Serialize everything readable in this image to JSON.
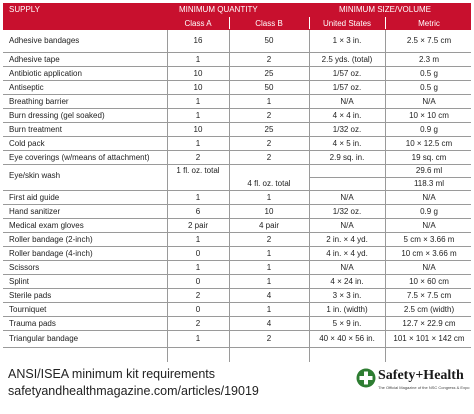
{
  "header": {
    "supply": "SUPPLY",
    "min_quantity": "MINIMUM QUANTITY",
    "min_size": "MINIMUM SIZE/VOLUME",
    "class_a": "Class A",
    "class_b": "Class B",
    "us": "United States",
    "metric": "Metric"
  },
  "rows": [
    {
      "supply": "Adhesive bandages",
      "a": "16",
      "b": "50",
      "us": "1 × 3 in.",
      "metric": "2.5 × 7.5 cm"
    },
    {
      "supply": "Adhesive tape",
      "a": "1",
      "b": "2",
      "us": "2.5 yds. (total)",
      "metric": "2.3 m"
    },
    {
      "supply": "Antibiotic application",
      "a": "10",
      "b": "25",
      "us": "1/57 oz.",
      "metric": "0.5 g"
    },
    {
      "supply": "Antiseptic",
      "a": "10",
      "b": "50",
      "us": "1/57 oz.",
      "metric": "0.5 g"
    },
    {
      "supply": "Breathing barrier",
      "a": "1",
      "b": "1",
      "us": "N/A",
      "metric": "N/A"
    },
    {
      "supply": "Burn dressing (gel soaked)",
      "a": "1",
      "b": "2",
      "us": "4 × 4 in.",
      "metric": "10 × 10 cm"
    },
    {
      "supply": "Burn treatment",
      "a": "10",
      "b": "25",
      "us": "1/32 oz.",
      "metric": "0.9 g"
    },
    {
      "supply": "Cold pack",
      "a": "1",
      "b": "2",
      "us": "4 × 5 in.",
      "metric": "10 × 12.5 cm"
    },
    {
      "supply": "Eye coverings (w/means of attachment)",
      "a": "2",
      "b": "2",
      "us": "2.9 sq. in.",
      "metric": "19 sq. cm"
    },
    {
      "supply": "Eye/skin wash",
      "a": "1 fl. oz. total",
      "b": "",
      "us": "",
      "metric": "29.6 ml",
      "b2": "4 fl. oz. total",
      "metric2": "118.3 ml"
    },
    {
      "supply": "First aid guide",
      "a": "1",
      "b": "1",
      "us": "N/A",
      "metric": "N/A"
    },
    {
      "supply": "Hand sanitizer",
      "a": "6",
      "b": "10",
      "us": "1/32 oz.",
      "metric": "0.9 g"
    },
    {
      "supply": "Medical exam gloves",
      "a": "2 pair",
      "b": "4 pair",
      "us": "N/A",
      "metric": "N/A"
    },
    {
      "supply": "Roller bandage (2-inch)",
      "a": "1",
      "b": "2",
      "us": "2 in. × 4 yd.",
      "metric": "5 cm × 3.66 m"
    },
    {
      "supply": "Roller bandage (4-inch)",
      "a": "0",
      "b": "1",
      "us": "4 in. × 4 yd.",
      "metric": "10 cm × 3.66 m"
    },
    {
      "supply": "Scissors",
      "a": "1",
      "b": "1",
      "us": "N/A",
      "metric": "N/A"
    },
    {
      "supply": "Splint",
      "a": "0",
      "b": "1",
      "us": "4 × 24 in.",
      "metric": "10 × 60 cm"
    },
    {
      "supply": "Sterile pads",
      "a": "2",
      "b": "4",
      "us": "3 × 3 in.",
      "metric": "7.5 × 7.5 cm"
    },
    {
      "supply": "Tourniquet",
      "a": "0",
      "b": "1",
      "us": "1 in. (width)",
      "metric": "2.5 cm (width)"
    },
    {
      "supply": "Trauma pads",
      "a": "2",
      "b": "4",
      "us": "5 × 9 in.",
      "metric": "12.7 × 22.9 cm"
    },
    {
      "supply": "Triangular bandage",
      "a": "1",
      "b": "2",
      "us": "40 × 40 × 56 in.",
      "metric": "101 × 101 × 142 cm"
    }
  ],
  "footer": {
    "title": "ANSI/ISEA minimum kit requirements",
    "url": "safetyandhealthmagazine.com/articles/19019"
  },
  "brand": {
    "name": "Safety+Health",
    "tagline": "The Official Magazine of the NSC Congress & Expo",
    "icon": "nsc-cross-icon"
  },
  "colors": {
    "header_bg": "#c8102e",
    "header_text": "#ffffff",
    "rule": "#9a9a9a",
    "brand_green": "#2e7d32"
  }
}
